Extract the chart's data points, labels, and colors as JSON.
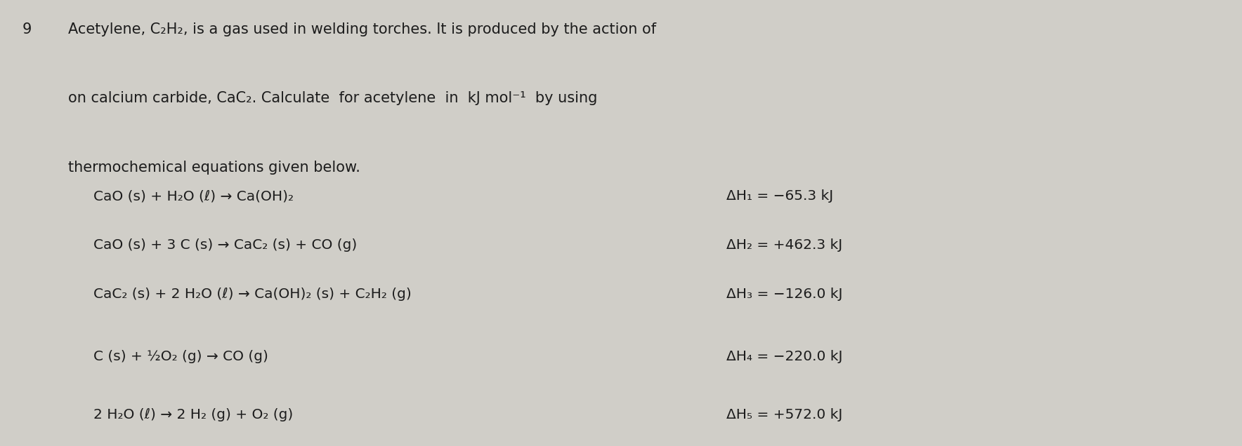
{
  "background_color": "#c8c6c0",
  "background_center": "#d8d6d0",
  "fig_width": 17.68,
  "fig_height": 6.36,
  "question_number": "9",
  "text_color": "#1c1c1c",
  "font_size_intro": 15,
  "font_size_eq": 14.5,
  "font_size_dh": 14.5,
  "font_size_qnum": 15,
  "intro_lines": [
    "Acetylene, C₂H₂, is a gas used in welding torches. It is produced by the action of",
    "on calcium carbide, CaC₂. Calculate  for acetylene  in  kJ mol⁻¹  by using",
    "thermochemical equations given below."
  ],
  "equations": [
    "CaO (s) + H₂O (ℓ) → Ca(OH)₂",
    "CaO (s) + 3 C (s) → CaC₂ (s) + CO (g)",
    "CaC₂ (s) + 2 H₂O (ℓ) → Ca(OH)₂ (s) + C₂H₂ (g)",
    "C (s) + ½O₂ (g) → CO (g)",
    "2 H₂O (ℓ) → 2 H₂ (g) + O₂ (g)"
  ],
  "delta_h_labels": [
    "ΔH₁ = −65.3 kJ",
    "ΔH₂ = +462.3 kJ",
    "ΔH₃ = −126.0 kJ",
    "ΔH₄ = −220.0 kJ",
    "ΔH₅ = +572.0 kJ"
  ]
}
